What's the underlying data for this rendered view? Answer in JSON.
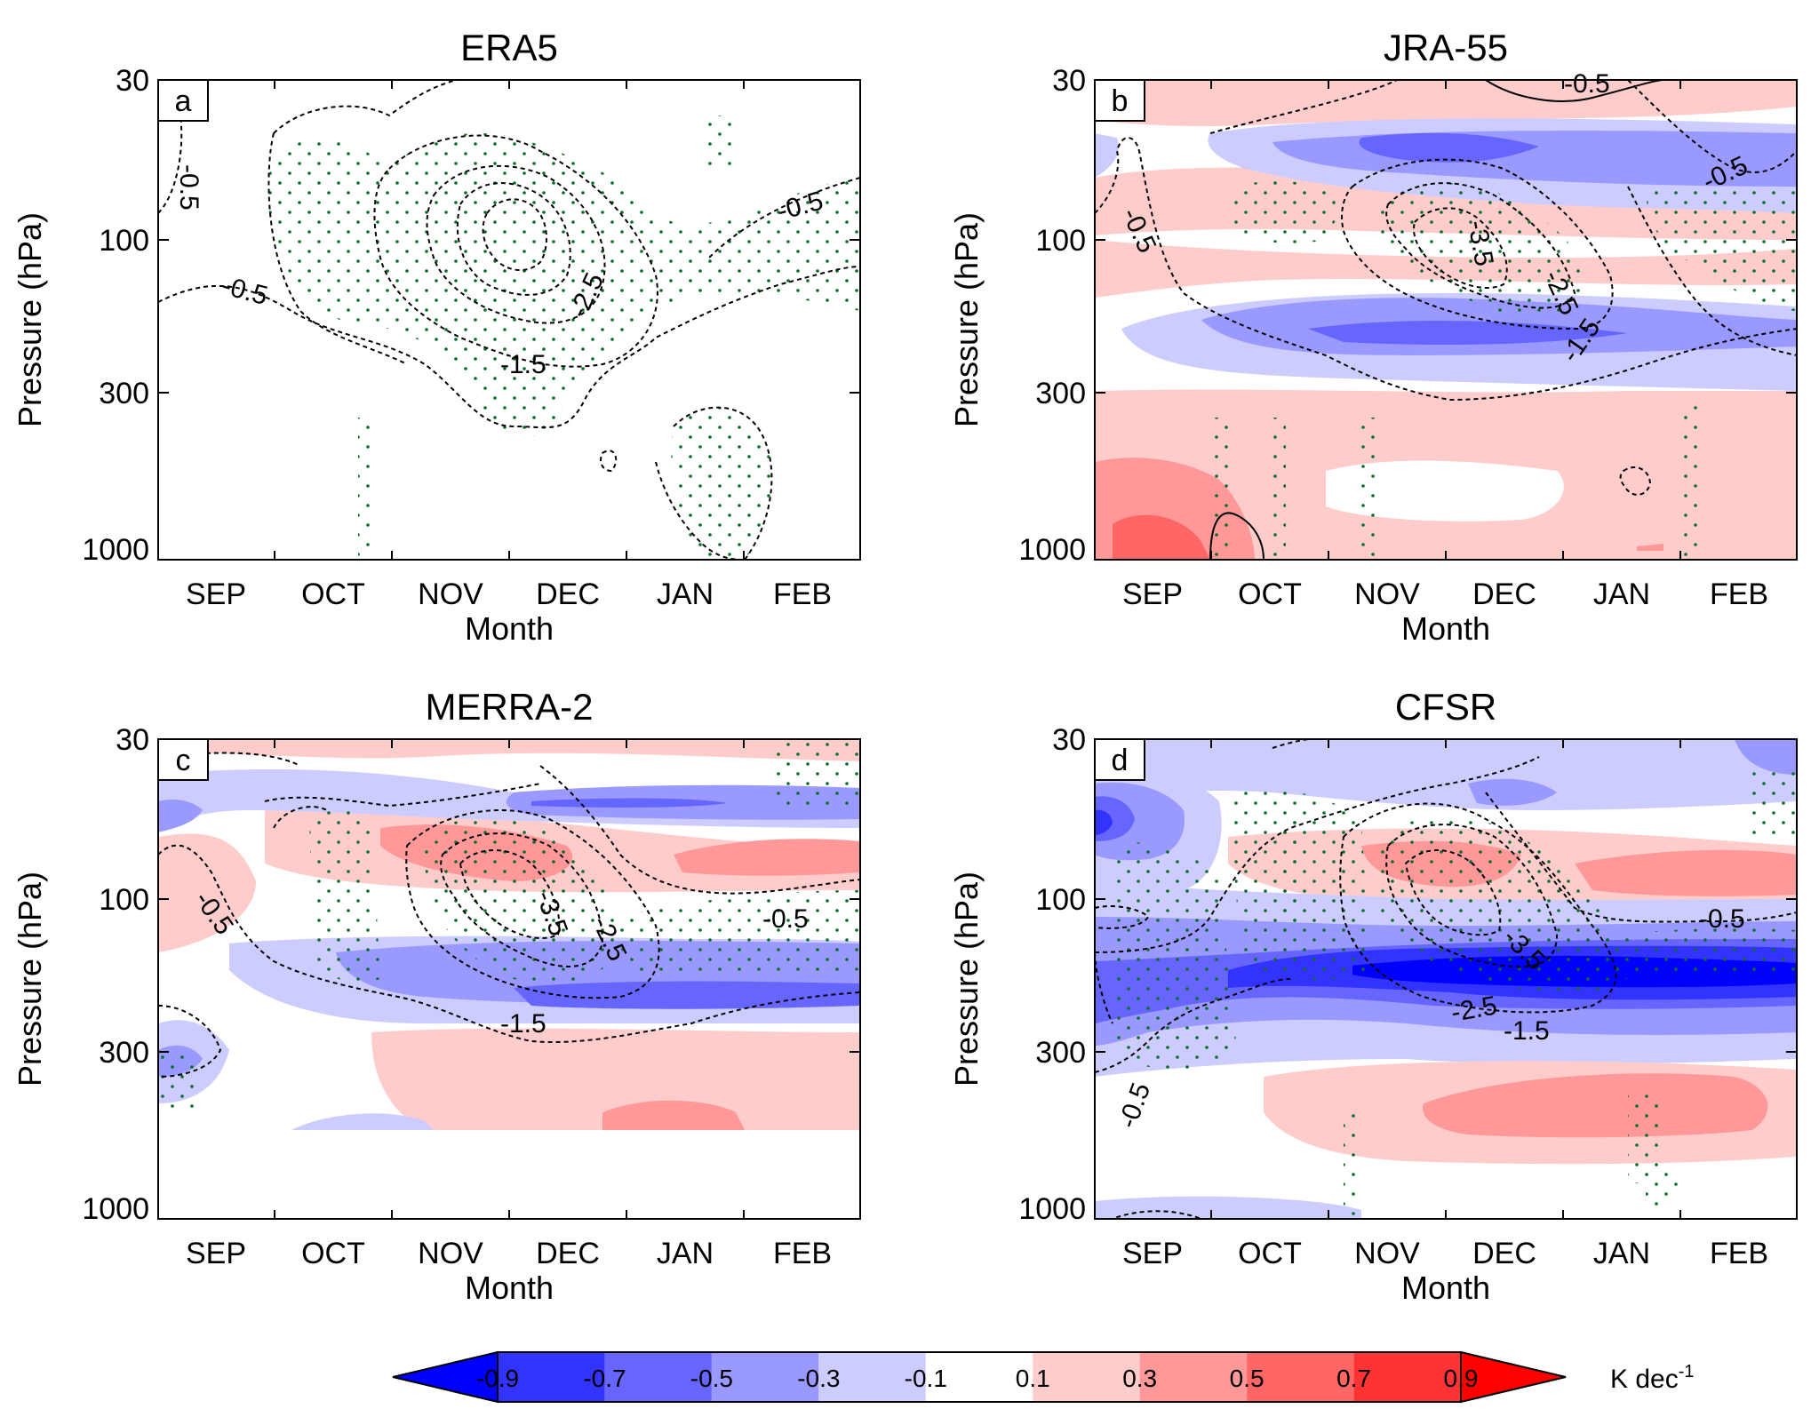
{
  "chart_data": [
    {
      "type": "contour",
      "panel": "a",
      "title": "ERA5",
      "xlabel": "Month",
      "ylabel": "Pressure (hPa)",
      "x_ticks": [
        "SEP",
        "OCT",
        "NOV",
        "DEC",
        "JAN",
        "FEB"
      ],
      "y_ticks": [
        30,
        100,
        300,
        1000
      ],
      "y_scale": "log",
      "contour_labels": [
        "-0.5",
        "-0.5",
        "-0.5",
        "-1.5",
        "-2.5"
      ],
      "shading": false
    },
    {
      "type": "contour",
      "panel": "b",
      "title": "JRA-55",
      "xlabel": "Month",
      "ylabel": "Pressure (hPa)",
      "x_ticks": [
        "SEP",
        "OCT",
        "NOV",
        "DEC",
        "JAN",
        "FEB"
      ],
      "y_ticks": [
        30,
        100,
        300,
        1000
      ],
      "y_scale": "log",
      "contour_labels": [
        "-0.5",
        "-0.5",
        "-0.5",
        "-3.5",
        "-2.5",
        "-1.5"
      ],
      "shading": true
    },
    {
      "type": "contour",
      "panel": "c",
      "title": "MERRA-2",
      "xlabel": "Month",
      "ylabel": "Pressure (hPa)",
      "x_ticks": [
        "SEP",
        "OCT",
        "NOV",
        "DEC",
        "JAN",
        "FEB"
      ],
      "y_ticks": [
        30,
        100,
        300,
        1000
      ],
      "y_scale": "log",
      "contour_labels": [
        "-0.5",
        "-0.5",
        "-3.5",
        "-2.5",
        "-1.5"
      ],
      "shading": true
    },
    {
      "type": "contour",
      "panel": "d",
      "title": "CFSR",
      "xlabel": "Month",
      "ylabel": "Pressure (hPa)",
      "x_ticks": [
        "SEP",
        "OCT",
        "NOV",
        "DEC",
        "JAN",
        "FEB"
      ],
      "y_ticks": [
        30,
        100,
        300,
        1000
      ],
      "y_scale": "log",
      "contour_labels": [
        "-0.5",
        "-0.5",
        "-3.5",
        "-2.5",
        "-1.5"
      ],
      "shading": true
    }
  ],
  "colorbar": {
    "levels": [
      "-0.9",
      "-0.7",
      "-0.5",
      "-0.3",
      "-0.1",
      "0.1",
      "0.3",
      "0.5",
      "0.7",
      "0.9"
    ],
    "colors": [
      "#0000ff",
      "#3333ff",
      "#6666ff",
      "#9999ff",
      "#ccccff",
      "#ffffff",
      "#ffcccc",
      "#ff9999",
      "#ff6666",
      "#ff3333",
      "#ff0000"
    ],
    "unit_base": "K dec",
    "unit_exp": "-1"
  }
}
